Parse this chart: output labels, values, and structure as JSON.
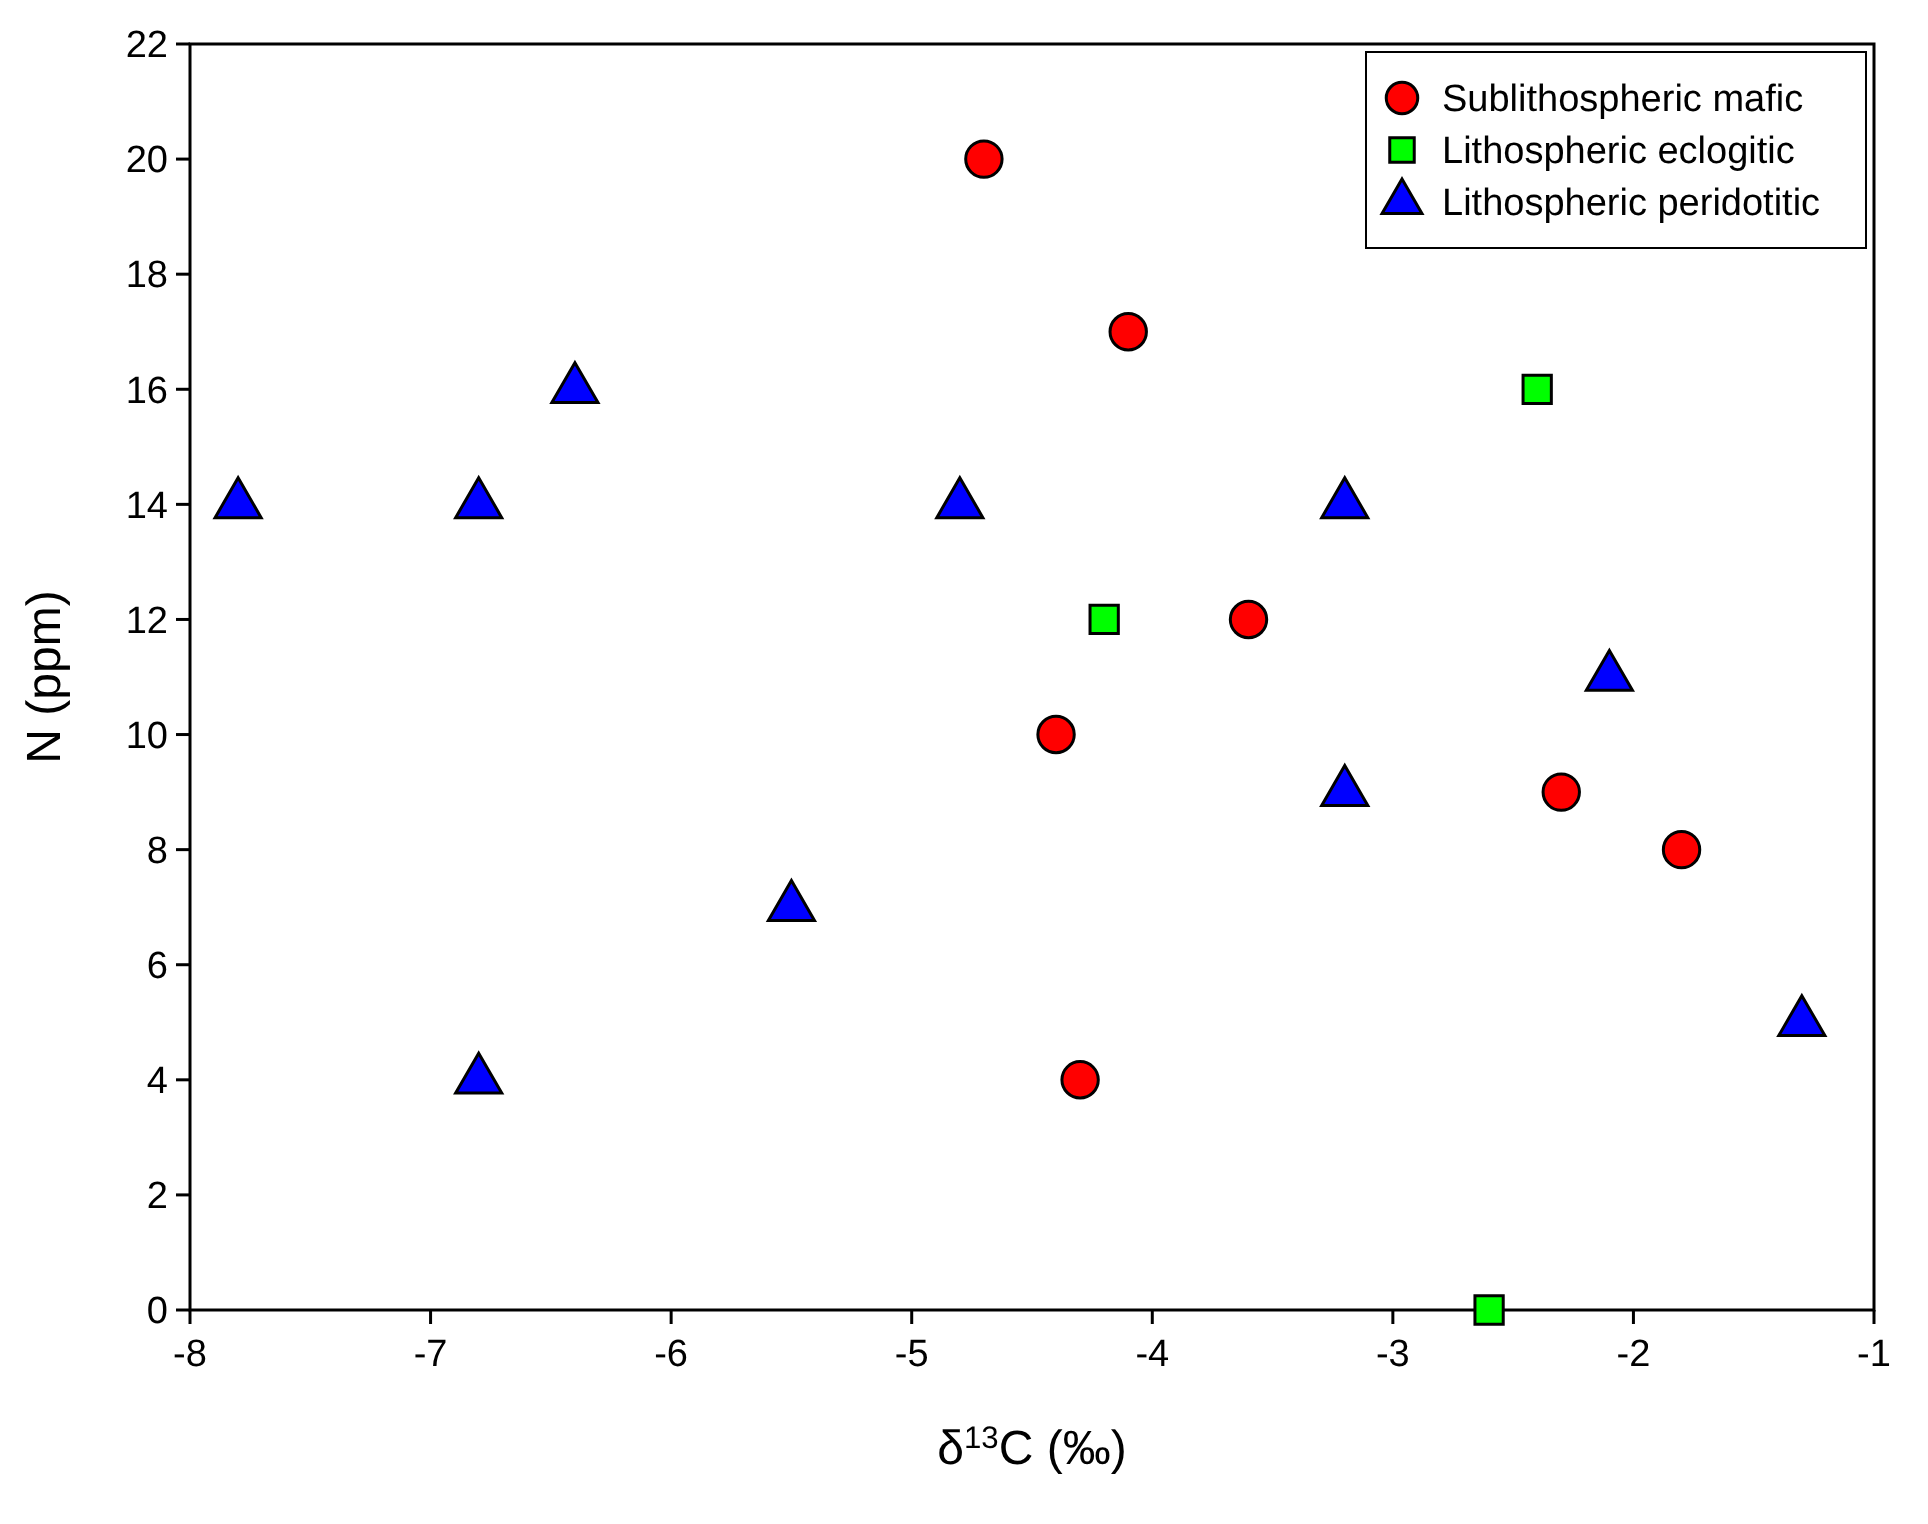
{
  "chart_data": {
    "type": "scatter",
    "xlabel": "δ$^{13}$C (‰)",
    "ylabel": "N (ppm)",
    "xlim": [
      -8,
      -1
    ],
    "xticks": [
      -8,
      -7,
      -6,
      -5,
      -4,
      -3,
      -2,
      -1
    ],
    "ylim": [
      0,
      22
    ],
    "yticks": [
      0,
      2,
      4,
      6,
      8,
      10,
      12,
      14,
      16,
      18,
      20,
      22
    ],
    "grid": false,
    "legend": "top right",
    "series": [
      {
        "name": "Sublithospheric mafic",
        "color": "#ff0000",
        "marker": "circle",
        "x": [
          -4.7,
          -4.1,
          -3.6,
          -4.4,
          -2.3,
          -1.8,
          -4.3
        ],
        "values": [
          20,
          17,
          12,
          10,
          9,
          8,
          4
        ]
      },
      {
        "name": "Lithospheric eclogitic",
        "color": "#00ff00",
        "marker": "square",
        "x": [
          -2.4,
          -4.2,
          -2.6
        ],
        "values": [
          16,
          12,
          0
        ]
      },
      {
        "name": "Lithospheric peridotitic",
        "color": "#0000ff",
        "marker": "triangle",
        "x": [
          -7.8,
          -6.8,
          -6.4,
          -4.8,
          -3.2,
          -2.1,
          -3.2,
          -5.5,
          -6.8,
          -1.3
        ],
        "values": [
          14,
          14,
          16,
          14,
          14,
          11,
          9,
          7,
          4,
          5
        ]
      }
    ]
  }
}
